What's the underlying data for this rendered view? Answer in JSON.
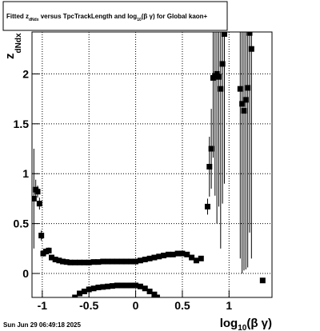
{
  "chart_data": {
    "type": "scatter",
    "title": [
      "Fitted ",
      "z",
      "dNdx",
      " versus TpcTrackLength and log",
      "10",
      "(β γ) for Global kaon+"
    ],
    "x_label": [
      "log",
      "10",
      "(β γ)"
    ],
    "y_label": [
      "z",
      "dNdx"
    ],
    "footer": "Sun Jun 29 06:49:18 2025",
    "xlim": [
      -1.11,
      1.46
    ],
    "ylim": [
      -0.24,
      2.42
    ],
    "xticks": [
      -1,
      -0.5,
      0,
      0.5,
      1
    ],
    "yticks": [
      0,
      0.5,
      1,
      1.5,
      2
    ],
    "grid": true,
    "color": "#000000",
    "x": [
      -1.09,
      -1.07,
      -1.05,
      -1.03,
      -1.01,
      -0.99,
      -0.96,
      -0.93,
      -0.9,
      -0.86,
      -0.82,
      -0.78,
      -0.74,
      -0.7,
      -0.65,
      -0.6,
      -0.55,
      -0.5,
      -0.45,
      -0.4,
      -0.35,
      -0.3,
      -0.25,
      -0.2,
      -0.15,
      -0.1,
      -0.05,
      0,
      0.05,
      0.1,
      0.15,
      0.2,
      0.25,
      0.3,
      0.35,
      0.4,
      0.45,
      0.5,
      0.55,
      0.6,
      0.65,
      0.7,
      -0.65,
      -0.6,
      -0.55,
      -0.5,
      -0.45,
      -0.4,
      -0.35,
      -0.3,
      -0.25,
      -0.2,
      -0.15,
      -0.1,
      -0.05,
      0,
      0.05,
      0.1,
      0.15,
      0.2,
      0.23,
      0.77,
      0.79,
      0.81,
      0.83,
      0.85,
      0.87,
      0.89,
      0.91,
      0.93,
      0.95,
      1.12,
      1.14,
      1.16,
      1.18,
      1.2,
      1.22,
      1.24,
      1.36
    ],
    "values": [
      0.75,
      0.84,
      0.82,
      0.7,
      0.38,
      0.2,
      0.22,
      0.23,
      0.16,
      0.14,
      0.13,
      0.12,
      0.115,
      0.11,
      0.11,
      0.11,
      0.11,
      0.11,
      0.115,
      0.115,
      0.12,
      0.12,
      0.12,
      0.12,
      0.12,
      0.12,
      0.12,
      0.12,
      0.13,
      0.14,
      0.15,
      0.16,
      0.17,
      0.18,
      0.19,
      0.19,
      0.2,
      0.2,
      0.19,
      0.16,
      0.13,
      0.15,
      -0.24,
      -0.2,
      -0.18,
      -0.16,
      -0.15,
      -0.14,
      -0.135,
      -0.13,
      -0.125,
      -0.12,
      -0.12,
      -0.12,
      -0.12,
      -0.12,
      -0.13,
      -0.15,
      -0.18,
      -0.21,
      -0.24,
      0.67,
      1.07,
      1.25,
      1.96,
      1.98,
      2.0,
      1.97,
      1.85,
      2.1,
      2.4,
      1.85,
      1.7,
      1.63,
      1.74,
      1.86,
      2.41,
      2.25,
      -0.07
    ],
    "errors": [
      0.5,
      0.1,
      0.06,
      0.06,
      0.05,
      0.03,
      0.03,
      0.03,
      0.02,
      0.01,
      0.01,
      0.01,
      0.01,
      0.01,
      0.01,
      0.01,
      0.01,
      0.01,
      0.01,
      0.01,
      0.01,
      0.01,
      0.01,
      0.01,
      0.01,
      0.01,
      0.01,
      0.01,
      0.01,
      0.01,
      0.01,
      0.01,
      0.01,
      0.01,
      0.01,
      0.01,
      0.01,
      0.01,
      0.01,
      0.02,
      0.02,
      0.02,
      0.01,
      0.01,
      0.01,
      0.01,
      0.01,
      0.01,
      0.01,
      0.01,
      0.01,
      0.01,
      0.01,
      0.01,
      0.01,
      0.01,
      0.01,
      0.01,
      0.01,
      0.01,
      0.01,
      0.08,
      0.3,
      0.4,
      0.8,
      1.2,
      1.5,
      1.3,
      1.6,
      1.4,
      1.5,
      1.7,
      1.7,
      1.6,
      1.7,
      1.8,
      2.0,
      2.1,
      0.02
    ]
  }
}
